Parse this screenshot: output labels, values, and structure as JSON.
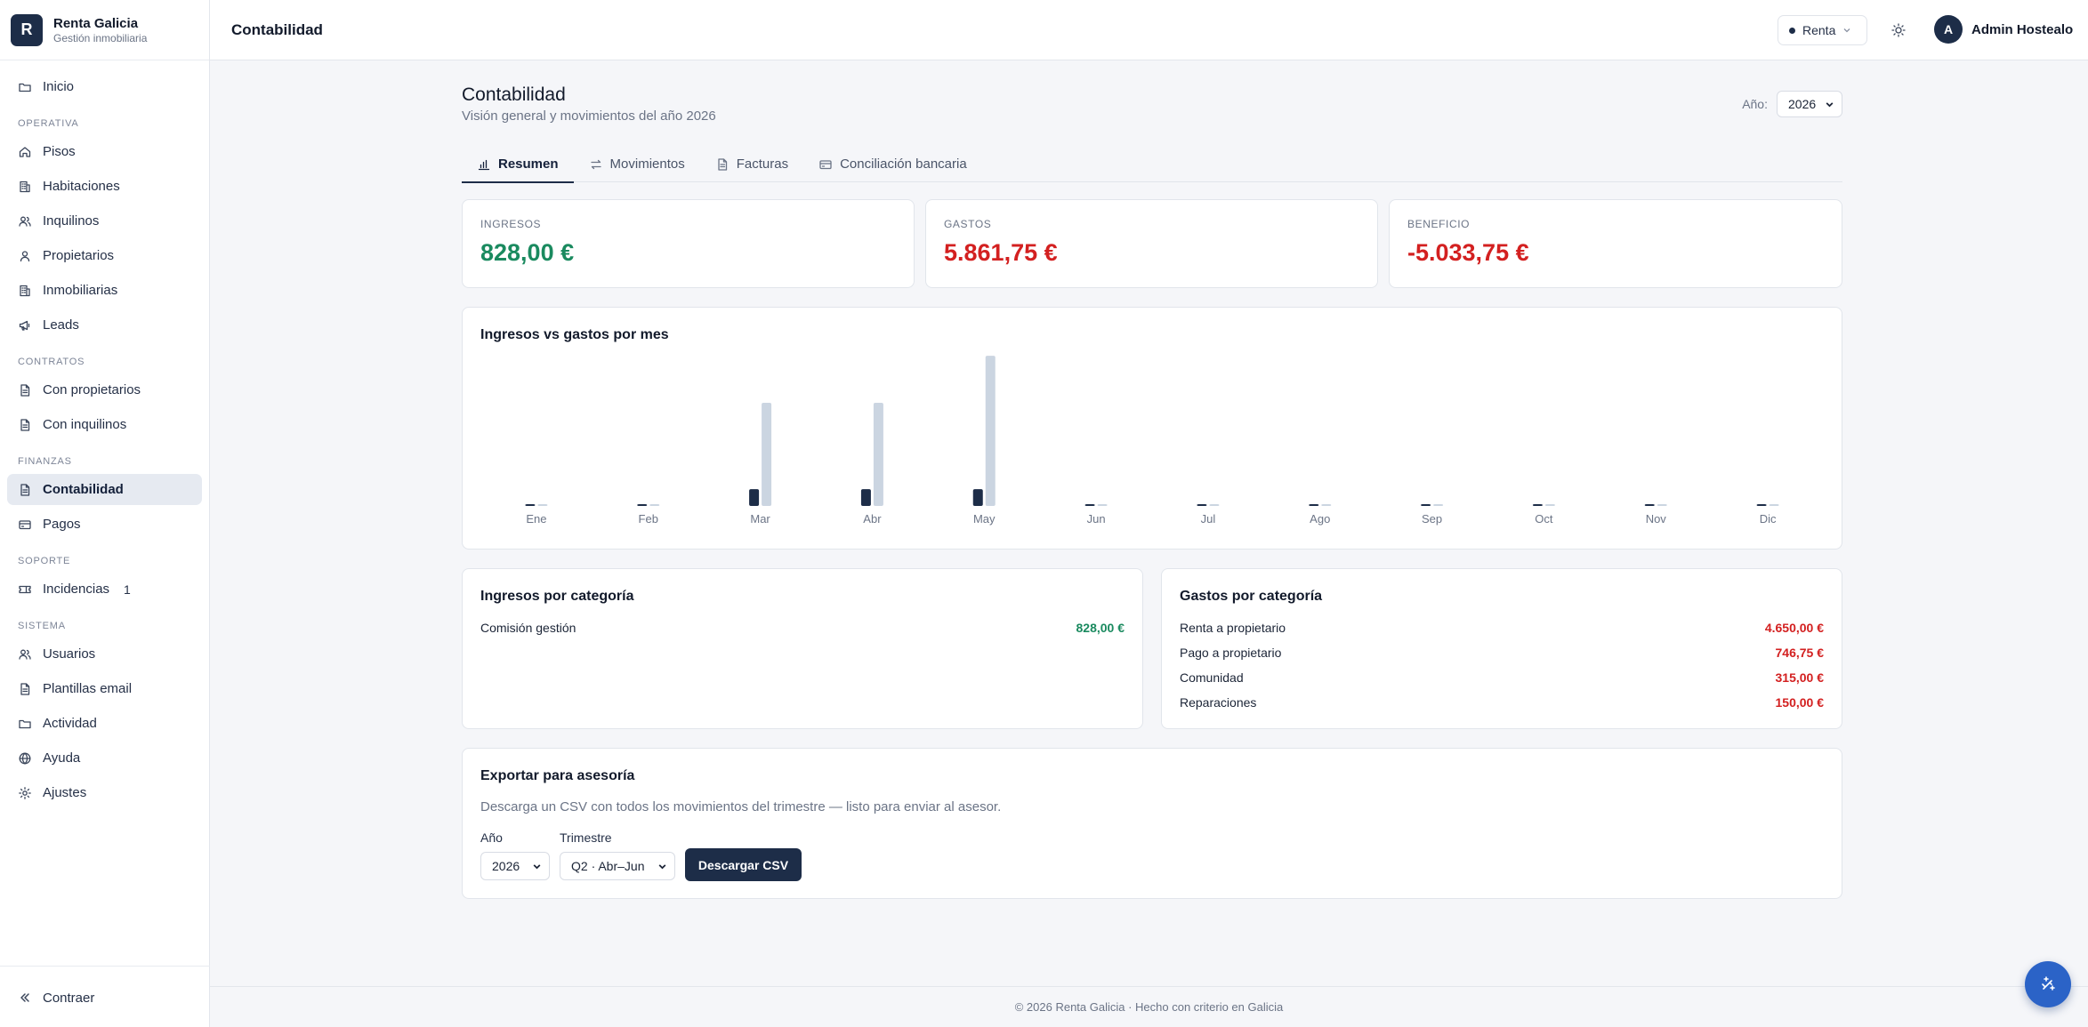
{
  "brand": {
    "letter": "R",
    "name": "Renta Galicia",
    "subtitle": "Gestión inmobiliaria"
  },
  "sidebar": {
    "top_item": {
      "label": "Inicio",
      "icon": "folder-icon"
    },
    "sections": [
      {
        "title": "OPERATIVA",
        "items": [
          {
            "label": "Pisos",
            "icon": "home-icon"
          },
          {
            "label": "Habitaciones",
            "icon": "building-icon"
          },
          {
            "label": "Inquilinos",
            "icon": "users-icon"
          },
          {
            "label": "Propietarios",
            "icon": "user-icon"
          },
          {
            "label": "Inmobiliarias",
            "icon": "building-icon"
          },
          {
            "label": "Leads",
            "icon": "megaphone-icon"
          }
        ]
      },
      {
        "title": "CONTRATOS",
        "items": [
          {
            "label": "Con propietarios",
            "icon": "file-icon"
          },
          {
            "label": "Con inquilinos",
            "icon": "file-icon"
          }
        ]
      },
      {
        "title": "FINANZAS",
        "items": [
          {
            "label": "Contabilidad",
            "icon": "file-icon",
            "active": true
          },
          {
            "label": "Pagos",
            "icon": "card-icon"
          }
        ]
      },
      {
        "title": "SOPORTE",
        "items": [
          {
            "label": "Incidencias",
            "icon": "ticket-icon",
            "badge": "1"
          }
        ]
      },
      {
        "title": "SISTEMA",
        "items": [
          {
            "label": "Usuarios",
            "icon": "users-icon"
          },
          {
            "label": "Plantillas email",
            "icon": "file-icon"
          },
          {
            "label": "Actividad",
            "icon": "folder-icon"
          },
          {
            "label": "Ayuda",
            "icon": "globe-icon"
          },
          {
            "label": "Ajustes",
            "icon": "gear-icon"
          }
        ]
      }
    ],
    "collapse_label": "Contraer"
  },
  "topbar": {
    "title": "Contabilidad",
    "mode_label": "Renta",
    "user_initial": "A",
    "user_name": "Admin Hostealo"
  },
  "page": {
    "title": "Contabilidad",
    "subtitle": "Visión general y movimientos del año 2026",
    "year_label": "Año:",
    "year_value": "2026"
  },
  "tabs": [
    {
      "label": "Resumen",
      "icon": "chart-icon",
      "active": true
    },
    {
      "label": "Movimientos",
      "icon": "arrows-icon"
    },
    {
      "label": "Facturas",
      "icon": "file-icon"
    },
    {
      "label": "Conciliación bancaria",
      "icon": "card-icon"
    }
  ],
  "kpis": {
    "ingresos": {
      "label": "INGRESOS",
      "value": "828,00 €"
    },
    "gastos": {
      "label": "GASTOS",
      "value": "5.861,75 €"
    },
    "beneficio": {
      "label": "BENEFICIO",
      "value": "-5.033,75 €"
    }
  },
  "colors": {
    "ingresos_bar": "#1d2d48",
    "gastos_bar": "#cbd5e1",
    "positive": "#1a8a5f",
    "negative": "#d32020"
  },
  "chart_title": "Ingresos vs gastos por mes",
  "chart_data": {
    "type": "bar",
    "categories": [
      "Ene",
      "Feb",
      "Mar",
      "Abr",
      "May",
      "Jun",
      "Jul",
      "Ago",
      "Sep",
      "Oct",
      "Nov",
      "Dic"
    ],
    "series": [
      {
        "values": [
          0,
          0,
          276,
          276,
          276,
          0,
          0,
          0,
          0,
          0,
          0,
          0
        ]
      },
      {
        "values": [
          0,
          0,
          1696.75,
          1696.75,
          2468.25,
          0,
          0,
          0,
          0,
          0,
          0,
          0
        ]
      }
    ],
    "ylim": [
      0,
      2500
    ],
    "grid": false,
    "legend": "none"
  },
  "ingresos_categoria": {
    "title": "Ingresos por categoría",
    "rows": [
      {
        "label": "Comisión gestión",
        "value": "828,00 €"
      }
    ]
  },
  "gastos_categoria": {
    "title": "Gastos por categoría",
    "rows": [
      {
        "label": "Renta a propietario",
        "value": "4.650,00 €"
      },
      {
        "label": "Pago a propietario",
        "value": "746,75 €"
      },
      {
        "label": "Comunidad",
        "value": "315,00 €"
      },
      {
        "label": "Reparaciones",
        "value": "150,00 €"
      }
    ]
  },
  "export": {
    "title": "Exportar para asesoría",
    "description": "Descarga un CSV con todos los movimientos del trimestre — listo para enviar al asesor.",
    "year_label": "Año",
    "year_value": "2026",
    "quarter_label": "Trimestre",
    "quarter_value": "Q2 · Abr–Jun",
    "button": "Descargar CSV"
  },
  "footer": "© 2026 Renta Galicia · Hecho con criterio en Galicia"
}
